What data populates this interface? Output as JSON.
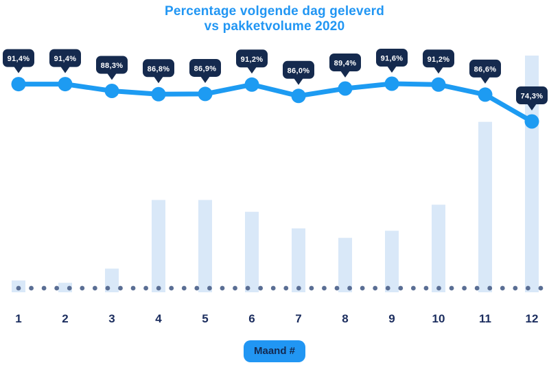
{
  "title": {
    "line1": "Percentage volgende dag geleverd",
    "line2": "vs pakketvolume 2020"
  },
  "x_axis_badge": "Maand #",
  "colors": {
    "title_blue": "#2196F3",
    "line_blue": "#1D9BF2",
    "tooltip_navy": "#152A4E",
    "tooltip_text": "#FFFFFF",
    "bar_light_blue": "#D9E8F8",
    "dot_slate": "#5A6E94",
    "axis_label_navy": "#1B2D5E",
    "badge_blue": "#2196F3",
    "badge_text_navy": "#132A52",
    "background": "#FFFFFF"
  },
  "chart_data": {
    "type": "line",
    "subtype": "line-with-bar-combo",
    "title": "Percentage volgende dag geleverd vs pakketvolume 2020",
    "xlabel": "Maand #",
    "ylabel": "",
    "legend": "none",
    "grid": "dotted horizontal baseline at bar base",
    "categories": [
      "1",
      "2",
      "3",
      "4",
      "5",
      "6",
      "7",
      "8",
      "9",
      "10",
      "11",
      "12"
    ],
    "series": [
      {
        "name": "Percentage volgende dag geleverd",
        "type": "line",
        "unit": "%",
        "values": [
          91.4,
          91.4,
          88.3,
          86.8,
          86.9,
          91.2,
          86.0,
          89.4,
          91.6,
          91.2,
          86.6,
          74.3
        ],
        "labels": [
          "91,4%",
          "91,4%",
          "88,3%",
          "86,8%",
          "86,9%",
          "91,2%",
          "86,0%",
          "89,4%",
          "91,6%",
          "91,2%",
          "86,6%",
          "74,3%"
        ]
      },
      {
        "name": "Pakketvolume 2020",
        "type": "bar",
        "unit": "relative volume (unlabeled axis, max month = 100)",
        "values": [
          5,
          4,
          10,
          39,
          39,
          34,
          27,
          23,
          26,
          37,
          72,
          100
        ]
      }
    ]
  }
}
